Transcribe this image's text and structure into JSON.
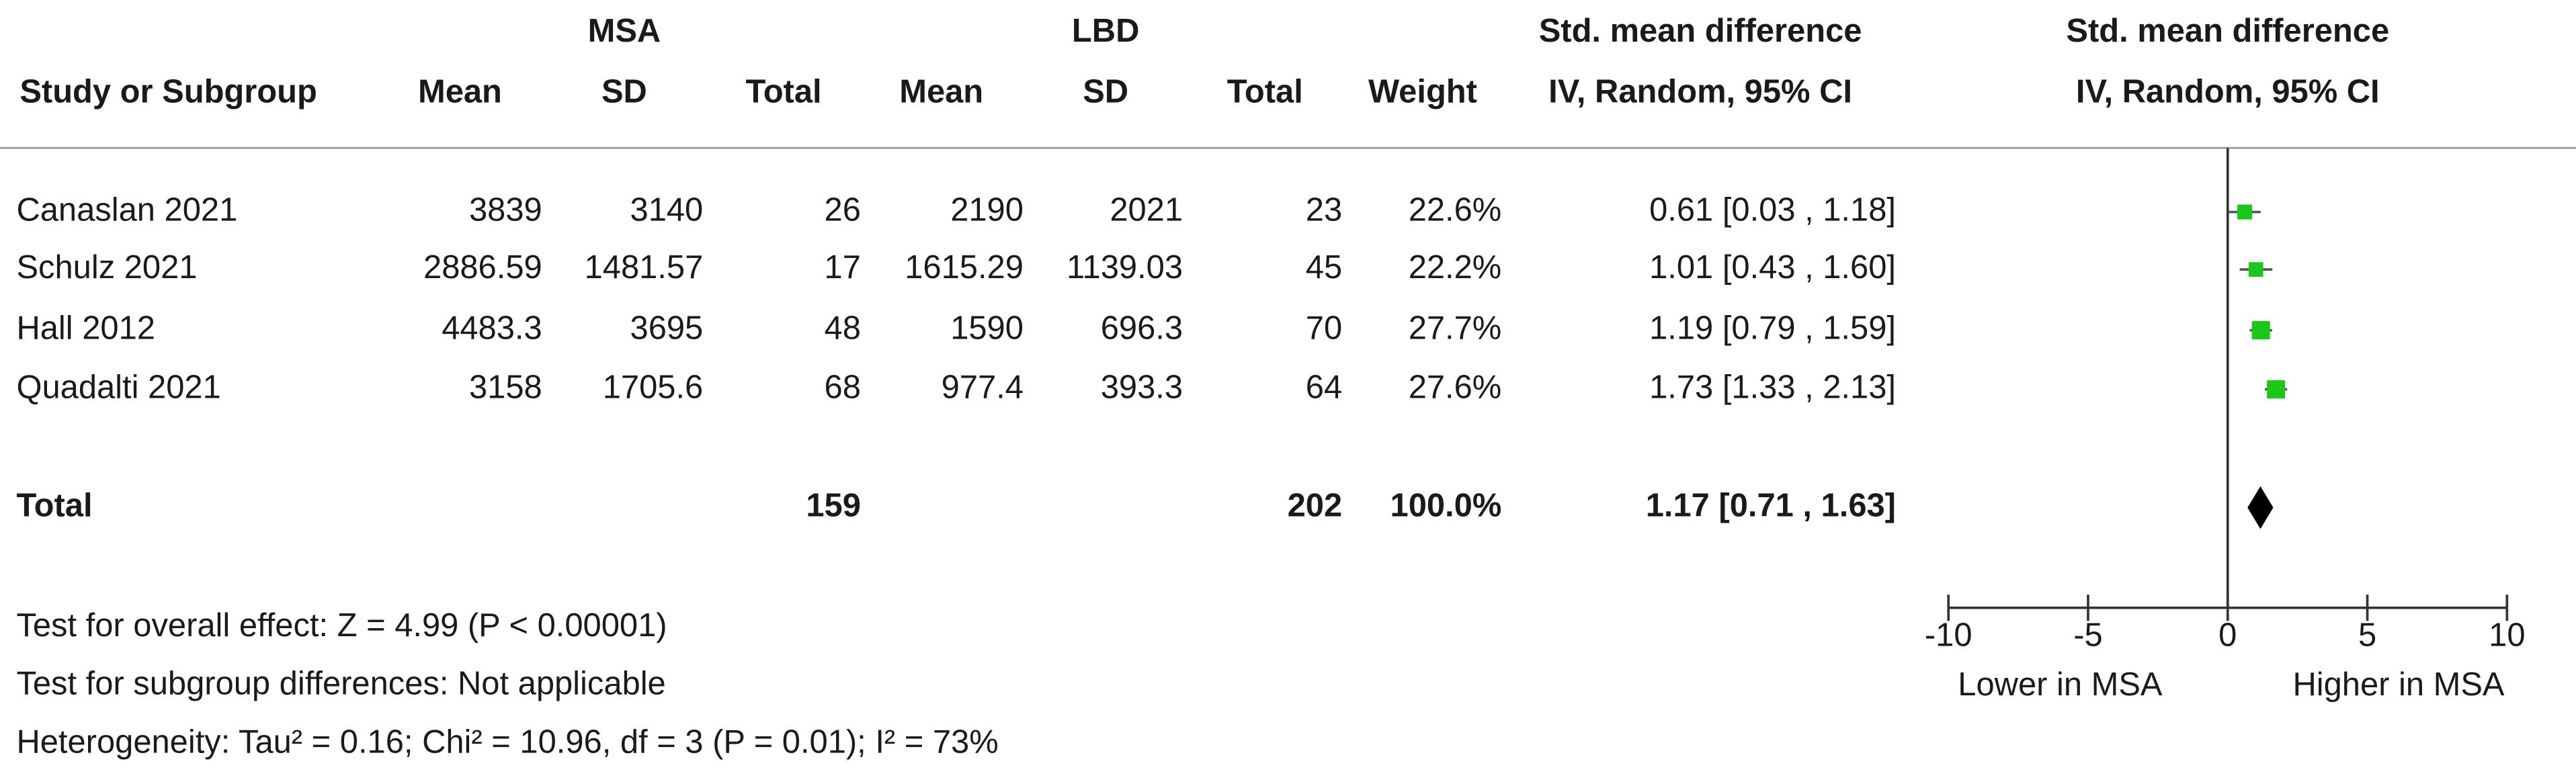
{
  "chart_data": {
    "type": "forest",
    "group_labels": [
      "MSA",
      "LBD"
    ],
    "columns": [
      "Study or Subgroup",
      "Mean",
      "SD",
      "Total",
      "Mean",
      "SD",
      "Total",
      "Weight"
    ],
    "effect_header": "Std. mean difference",
    "effect_subheader": "IV, Random, 95% CI",
    "plot_header": "Std. mean difference",
    "plot_subheader": "IV, Random, 95% CI",
    "studies": [
      {
        "name": "Canaslan 2021",
        "msa": {
          "mean": 3839,
          "sd": 3140,
          "total": 26
        },
        "lbd": {
          "mean": 2190,
          "sd": 2021,
          "total": 23
        },
        "weight": {
          "value": 22.6,
          "label": "22.6%"
        },
        "smd": 0.61,
        "ci": [
          0.03,
          1.18
        ],
        "ci_label": "0.61 [0.03 , 1.18]"
      },
      {
        "name": "Schulz 2021",
        "msa": {
          "mean": 2886.59,
          "sd": 1481.57,
          "total": 17
        },
        "lbd": {
          "mean": 1615.29,
          "sd": 1139.03,
          "total": 45
        },
        "weight": {
          "value": 22.2,
          "label": "22.2%"
        },
        "smd": 1.01,
        "ci": [
          0.43,
          1.6
        ],
        "ci_label": "1.01 [0.43 , 1.60]"
      },
      {
        "name": "Hall 2012",
        "msa": {
          "mean": 4483.3,
          "sd": 3695,
          "total": 48
        },
        "lbd": {
          "mean": 1590,
          "sd": 696.3,
          "total": 70
        },
        "weight": {
          "value": 27.7,
          "label": "27.7%"
        },
        "smd": 1.19,
        "ci": [
          0.79,
          1.59
        ],
        "ci_label": "1.19 [0.79 , 1.59]"
      },
      {
        "name": "Quadalti 2021",
        "msa": {
          "mean": 3158,
          "sd": 1705.6,
          "total": 68
        },
        "lbd": {
          "mean": 977.4,
          "sd": 393.3,
          "total": 64
        },
        "weight": {
          "value": 27.6,
          "label": "27.6%"
        },
        "smd": 1.73,
        "ci": [
          1.33,
          2.13
        ],
        "ci_label": "1.73 [1.33 , 2.13]"
      }
    ],
    "total": {
      "name": "Total",
      "msa_total": 159,
      "lbd_total": 202,
      "weight": {
        "value": 100.0,
        "label": "100.0%"
      },
      "smd": 1.17,
      "ci": [
        0.71,
        1.63
      ],
      "ci_label": "1.17 [0.71 , 1.63]"
    },
    "footnotes": [
      "Test for overall effect: Z = 4.99 (P < 0.00001)",
      "Test for subgroup differences: Not applicable",
      "Heterogeneity: Tau² = 0.16; Chi² = 10.96, df = 3 (P = 0.01); I² = 73%"
    ],
    "xlim": [
      -10,
      10
    ],
    "xticks": [
      -10,
      -5,
      0,
      5,
      10
    ],
    "xlabel_left": "Lower in MSA",
    "xlabel_right": "Higher in MSA",
    "marker_color": "#19c819",
    "diamond_color": "#000000"
  }
}
